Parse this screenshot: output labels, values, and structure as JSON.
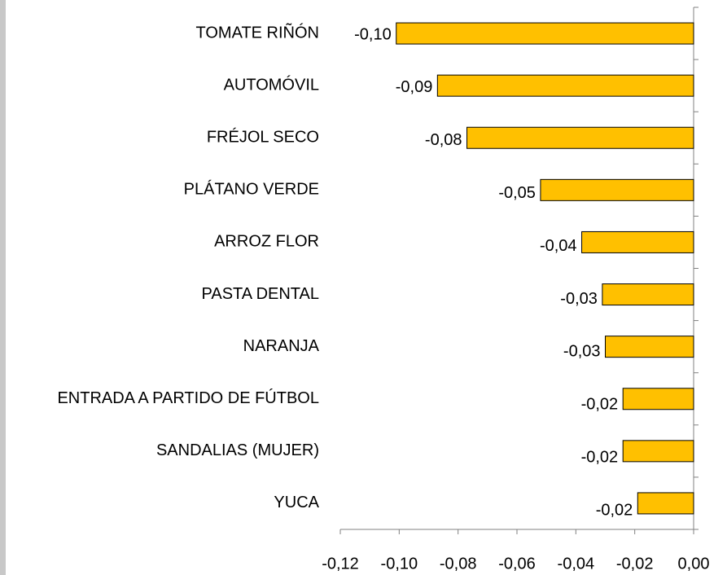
{
  "chart_data": {
    "type": "bar",
    "orientation": "horizontal",
    "categories": [
      "TOMATE RIÑÓN",
      "AUTOMÓVIL",
      "FRÉJOL SECO",
      "PLÁTANO VERDE",
      "ARROZ FLOR",
      "PASTA DENTAL",
      "NARANJA",
      "ENTRADA A PARTIDO DE FÚTBOL",
      "SANDALIAS (MUJER)",
      "YUCA"
    ],
    "values": [
      -0.101,
      -0.087,
      -0.077,
      -0.052,
      -0.038,
      -0.031,
      -0.03,
      -0.024,
      -0.024,
      -0.019
    ],
    "value_labels": [
      "-0,10",
      "-0,09",
      "-0,08",
      "-0,05",
      "-0,04",
      "-0,03",
      "-0,03",
      "-0,02",
      "-0,02",
      "-0,02"
    ],
    "color": "#ffc000",
    "xlim": [
      -0.12,
      0.0
    ],
    "xticks": [
      {
        "value": -0.12,
        "label": "-0,12"
      },
      {
        "value": -0.1,
        "label": "-0,10"
      },
      {
        "value": -0.08,
        "label": "-0,08"
      },
      {
        "value": -0.06,
        "label": "-0,06"
      },
      {
        "value": -0.04,
        "label": "-0,04"
      },
      {
        "value": -0.02,
        "label": "-0,02"
      },
      {
        "value": 0.0,
        "label": "0,00"
      }
    ],
    "grid": false
  }
}
